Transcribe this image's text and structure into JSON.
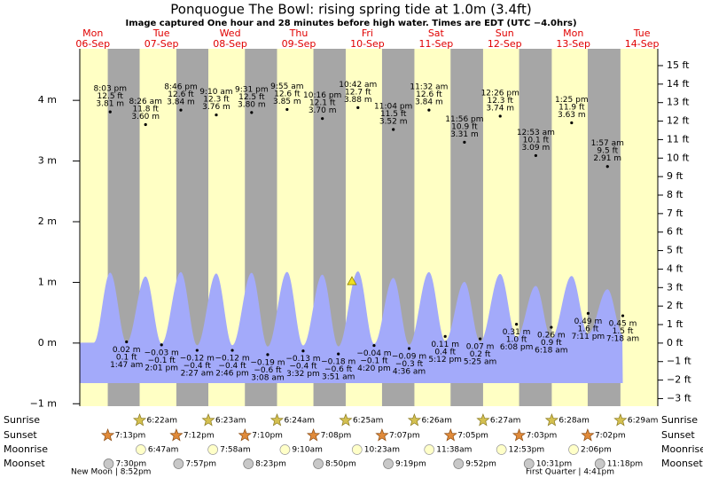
{
  "header": {
    "title": "Ponquogue The Bowl: rising  spring tide at 1.0m (3.4ft)",
    "subtitle": "Image captured One hour and 28 minutes before high water. Times are EDT (UTC −4.0hrs)"
  },
  "axes": {
    "left": {
      "ylim": [
        -1.04,
        4.85
      ],
      "ticks": [
        {
          "value": 4,
          "label": "4 m"
        },
        {
          "value": 3,
          "label": "3 m"
        },
        {
          "value": 2,
          "label": "2 m"
        },
        {
          "value": 1,
          "label": "1 m"
        },
        {
          "value": 0,
          "label": "0 m"
        },
        {
          "value": -1,
          "label": "−1 m"
        }
      ]
    },
    "right": {
      "ylim": [
        -3.41,
        15.91
      ],
      "ticks": [
        {
          "value": 15,
          "label": "15 ft"
        },
        {
          "value": 14,
          "label": "14 ft"
        },
        {
          "value": 13,
          "label": "13 ft"
        },
        {
          "value": 12,
          "label": "12 ft"
        },
        {
          "value": 11,
          "label": "11 ft"
        },
        {
          "value": 10,
          "label": "10 ft"
        },
        {
          "value": 9,
          "label": "9 ft"
        },
        {
          "value": 8,
          "label": "8 ft"
        },
        {
          "value": 7,
          "label": "7 ft"
        },
        {
          "value": 6,
          "label": "6 ft"
        },
        {
          "value": 5,
          "label": "5 ft"
        },
        {
          "value": 4,
          "label": "4 ft"
        },
        {
          "value": 3,
          "label": "3 ft"
        },
        {
          "value": 2,
          "label": "2 ft"
        },
        {
          "value": 1,
          "label": "1 ft"
        },
        {
          "value": 0,
          "label": "0 ft"
        },
        {
          "value": -1,
          "label": "−1 ft"
        },
        {
          "value": -2,
          "label": "−2 ft"
        },
        {
          "value": -3,
          "label": "−3 ft"
        }
      ]
    }
  },
  "rows": {
    "sunrise": "Sunrise",
    "sunset": "Sunset",
    "moonrise": "Moonrise",
    "moonset": "Moonset"
  },
  "phases": {
    "new_moon": "New Moon | 8:52pm",
    "first_quarter": "First Quarter | 4:41pm"
  },
  "days": [
    {
      "name": "Mon",
      "date": "06-Sep",
      "sunset": "7:13pm",
      "moonset": "7:30pm",
      "tides": [
        {
          "time": "8:03 pm",
          "feet": "12.5 ft",
          "meters": {
            "value": 3.81,
            "label": "3.81 m"
          }
        }
      ]
    },
    {
      "name": "Tue",
      "date": "07-Sep",
      "sunrise": "6:22am",
      "sunset": "7:12pm",
      "moonrise": "6:47am",
      "moonset": "7:57pm",
      "tides": [
        {
          "time": "1:47 am",
          "feet": "0.1 ft",
          "meters": {
            "value": 0.02,
            "label": "0.02 m"
          }
        },
        {
          "time": "8:26 am",
          "feet": "11.8 ft",
          "meters": {
            "value": 3.6,
            "label": "3.60 m"
          }
        },
        {
          "time": "2:01 pm",
          "feet": "−0.1 ft",
          "meters": {
            "value": -0.03,
            "label": "−0.03 m"
          }
        },
        {
          "time": "8:46 pm",
          "feet": "12.6 ft",
          "meters": {
            "value": 3.84,
            "label": "3.84 m"
          }
        }
      ]
    },
    {
      "name": "Wed",
      "date": "08-Sep",
      "sunrise": "6:23am",
      "sunset": "7:10pm",
      "moonrise": "7:58am",
      "moonset": "8:23pm",
      "tides": [
        {
          "time": "2:27 am",
          "feet": "−0.4 ft",
          "meters": {
            "value": -0.12,
            "label": "−0.12 m"
          }
        },
        {
          "time": "9:10 am",
          "feet": "12.3 ft",
          "meters": {
            "value": 3.76,
            "label": "3.76 m"
          }
        },
        {
          "time": "2:46 pm",
          "feet": "−0.4 ft",
          "meters": {
            "value": -0.12,
            "label": "−0.12 m"
          }
        },
        {
          "time": "9:31 pm",
          "feet": "12.5 ft",
          "meters": {
            "value": 3.8,
            "label": "3.80 m"
          }
        }
      ]
    },
    {
      "name": "Thu",
      "date": "09-Sep",
      "sunrise": "6:24am",
      "sunset": "7:08pm",
      "moonrise": "9:10am",
      "moonset": "8:50pm",
      "tides": [
        {
          "time": "3:08 am",
          "feet": "−0.6 ft",
          "meters": {
            "value": -0.19,
            "label": "−0.19 m"
          }
        },
        {
          "time": "9:55 am",
          "feet": "12.6 ft",
          "meters": {
            "value": 3.85,
            "label": "3.85 m"
          }
        },
        {
          "time": "3:32 pm",
          "feet": "−0.4 ft",
          "meters": {
            "value": -0.13,
            "label": "−0.13 m"
          }
        },
        {
          "time": "10:16 pm",
          "feet": "12.1 ft",
          "meters": {
            "value": 3.7,
            "label": "3.70 m"
          }
        }
      ]
    },
    {
      "name": "Fri",
      "date": "10-Sep",
      "sunrise": "6:25am",
      "sunset": "7:07pm",
      "moonrise": "10:23am",
      "moonset": "9:19pm",
      "tides": [
        {
          "time": "3:51 am",
          "feet": "−0.6 ft",
          "meters": {
            "value": -0.18,
            "label": "−0.18 m"
          }
        },
        {
          "time": "10:42 am",
          "feet": "12.7 ft",
          "meters": {
            "value": 3.88,
            "label": "3.88 m"
          }
        },
        {
          "time": "4:20 pm",
          "feet": "−0.1 ft",
          "meters": {
            "value": -0.04,
            "label": "−0.04 m"
          }
        },
        {
          "time": "11:04 pm",
          "feet": "11.5 ft",
          "meters": {
            "value": 3.52,
            "label": "3.52 m"
          }
        }
      ]
    },
    {
      "name": "Sat",
      "date": "11-Sep",
      "sunrise": "6:26am",
      "sunset": "7:05pm",
      "moonrise": "11:38am",
      "moonset": "9:52pm",
      "tides": [
        {
          "time": "4:36 am",
          "feet": "−0.3 ft",
          "meters": {
            "value": -0.09,
            "label": "−0.09 m"
          }
        },
        {
          "time": "11:32 am",
          "feet": "12.6 ft",
          "meters": {
            "value": 3.84,
            "label": "3.84 m"
          }
        },
        {
          "time": "5:12 pm",
          "feet": "0.4 ft",
          "meters": {
            "value": 0.11,
            "label": "0.11 m"
          }
        },
        {
          "time": "11:56 pm",
          "feet": "10.9 ft",
          "meters": {
            "value": 3.31,
            "label": "3.31 m"
          }
        }
      ]
    },
    {
      "name": "Sun",
      "date": "12-Sep",
      "sunrise": "6:27am",
      "sunset": "7:03pm",
      "moonrise": "12:53pm",
      "moonset": "10:31pm",
      "tides": [
        {
          "time": "5:25 am",
          "feet": "0.2 ft",
          "meters": {
            "value": 0.07,
            "label": "0.07 m"
          }
        },
        {
          "time": "12:26 pm",
          "feet": "12.3 ft",
          "meters": {
            "value": 3.74,
            "label": "3.74 m"
          }
        },
        {
          "time": "6:08 pm",
          "feet": "1.0 ft",
          "meters": {
            "value": 0.31,
            "label": "0.31 m"
          }
        }
      ]
    },
    {
      "name": "Mon",
      "date": "13-Sep",
      "sunrise": "6:28am",
      "sunset": "7:02pm",
      "moonrise": "2:06pm",
      "moonset": "11:18pm",
      "tides": [
        {
          "time": "12:53 am",
          "feet": "10.1 ft",
          "meters": {
            "value": 3.09,
            "label": "3.09 m"
          }
        },
        {
          "time": "6:18 am",
          "feet": "0.9 ft",
          "meters": {
            "value": 0.26,
            "label": "0.26 m"
          }
        },
        {
          "time": "1:25 pm",
          "feet": "11.9 ft",
          "meters": {
            "value": 3.63,
            "label": "3.63 m"
          }
        },
        {
          "time": "7:11 pm",
          "feet": "1.6 ft",
          "meters": {
            "value": 0.49,
            "label": "0.49 m"
          }
        }
      ]
    },
    {
      "name": "Tue",
      "date": "14-Sep",
      "sunrise": "6:29am",
      "tides": [
        {
          "time": "1:57 am",
          "feet": "9.5 ft",
          "meters": {
            "value": 2.91,
            "label": "2.91 m"
          }
        },
        {
          "time": "7:18 am",
          "feet": "1.5 ft",
          "meters": {
            "value": 0.45,
            "label": "0.45 m"
          }
        }
      ]
    }
  ]
}
